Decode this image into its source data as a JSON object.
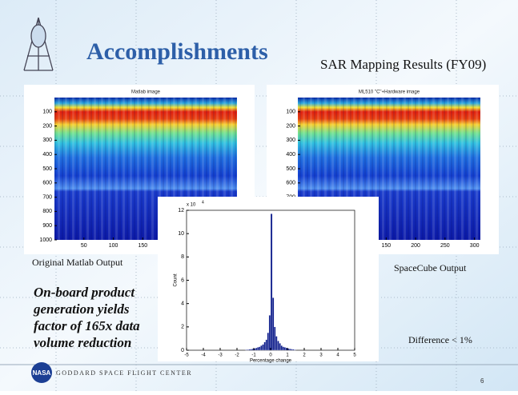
{
  "header": {
    "title": "Accomplishments",
    "subtitle": "SAR Mapping Results (FY09)"
  },
  "images": [
    {
      "title": "Matlab image",
      "xlim": [
        0,
        310
      ],
      "ylim": [
        0,
        1000
      ],
      "xticks": [
        50,
        100,
        150
      ],
      "yticks": [
        100,
        200,
        300,
        400,
        500,
        600,
        700,
        800,
        900,
        1000
      ],
      "caption": "Original Matlab Output"
    },
    {
      "title": "ML510 \"C\"+Hardware image",
      "xlim": [
        0,
        310
      ],
      "ylim": [
        0,
        1000
      ],
      "xticks": [
        150,
        200,
        250,
        300
      ],
      "yticks": [
        100,
        200,
        300,
        400,
        500,
        600,
        700
      ],
      "caption": "SpaceCube Output"
    }
  ],
  "histogram": {
    "type": "histogram",
    "color": "#0b1a8a",
    "bins": [
      -1.5,
      -1.4,
      -1.3,
      -1.2,
      -1.1,
      -1.0,
      -0.9,
      -0.8,
      -0.7,
      -0.6,
      -0.5,
      -0.4,
      -0.3,
      -0.2,
      -0.1,
      0.0,
      0.1,
      0.2,
      0.3,
      0.4,
      0.5,
      0.6,
      0.7,
      0.8,
      0.9,
      1.0,
      1.1,
      1.2,
      1.3,
      1.4,
      1.5
    ],
    "counts": [
      0.05,
      0.06,
      0.08,
      0.1,
      0.12,
      0.15,
      0.2,
      0.25,
      0.3,
      0.4,
      0.5,
      0.7,
      0.9,
      1.5,
      3.0,
      11.7,
      4.5,
      2.0,
      1.2,
      0.8,
      0.6,
      0.4,
      0.3,
      0.25,
      0.2,
      0.15,
      0.12,
      0.1,
      0.08,
      0.05
    ],
    "xlim": [
      -5,
      5
    ],
    "ylim": [
      0,
      12
    ],
    "xticks": [
      -5,
      -4,
      -3,
      -2,
      -1,
      0,
      1,
      2,
      3,
      4,
      5
    ],
    "yticks": [
      0,
      2,
      4,
      6,
      8,
      10,
      12
    ],
    "xlabel": "Percentage change",
    "ylabel": "Count",
    "multiplier": {
      "base": "x 10",
      "exponent": "4"
    }
  },
  "summary": [
    "On-board product",
    "generation yields",
    "factor of 165x data",
    "volume reduction"
  ],
  "difference": "Difference < 1%",
  "footer": {
    "logo": "NASA",
    "organization": "GODDARD SPACE FLIGHT CENTER",
    "page": "6"
  }
}
